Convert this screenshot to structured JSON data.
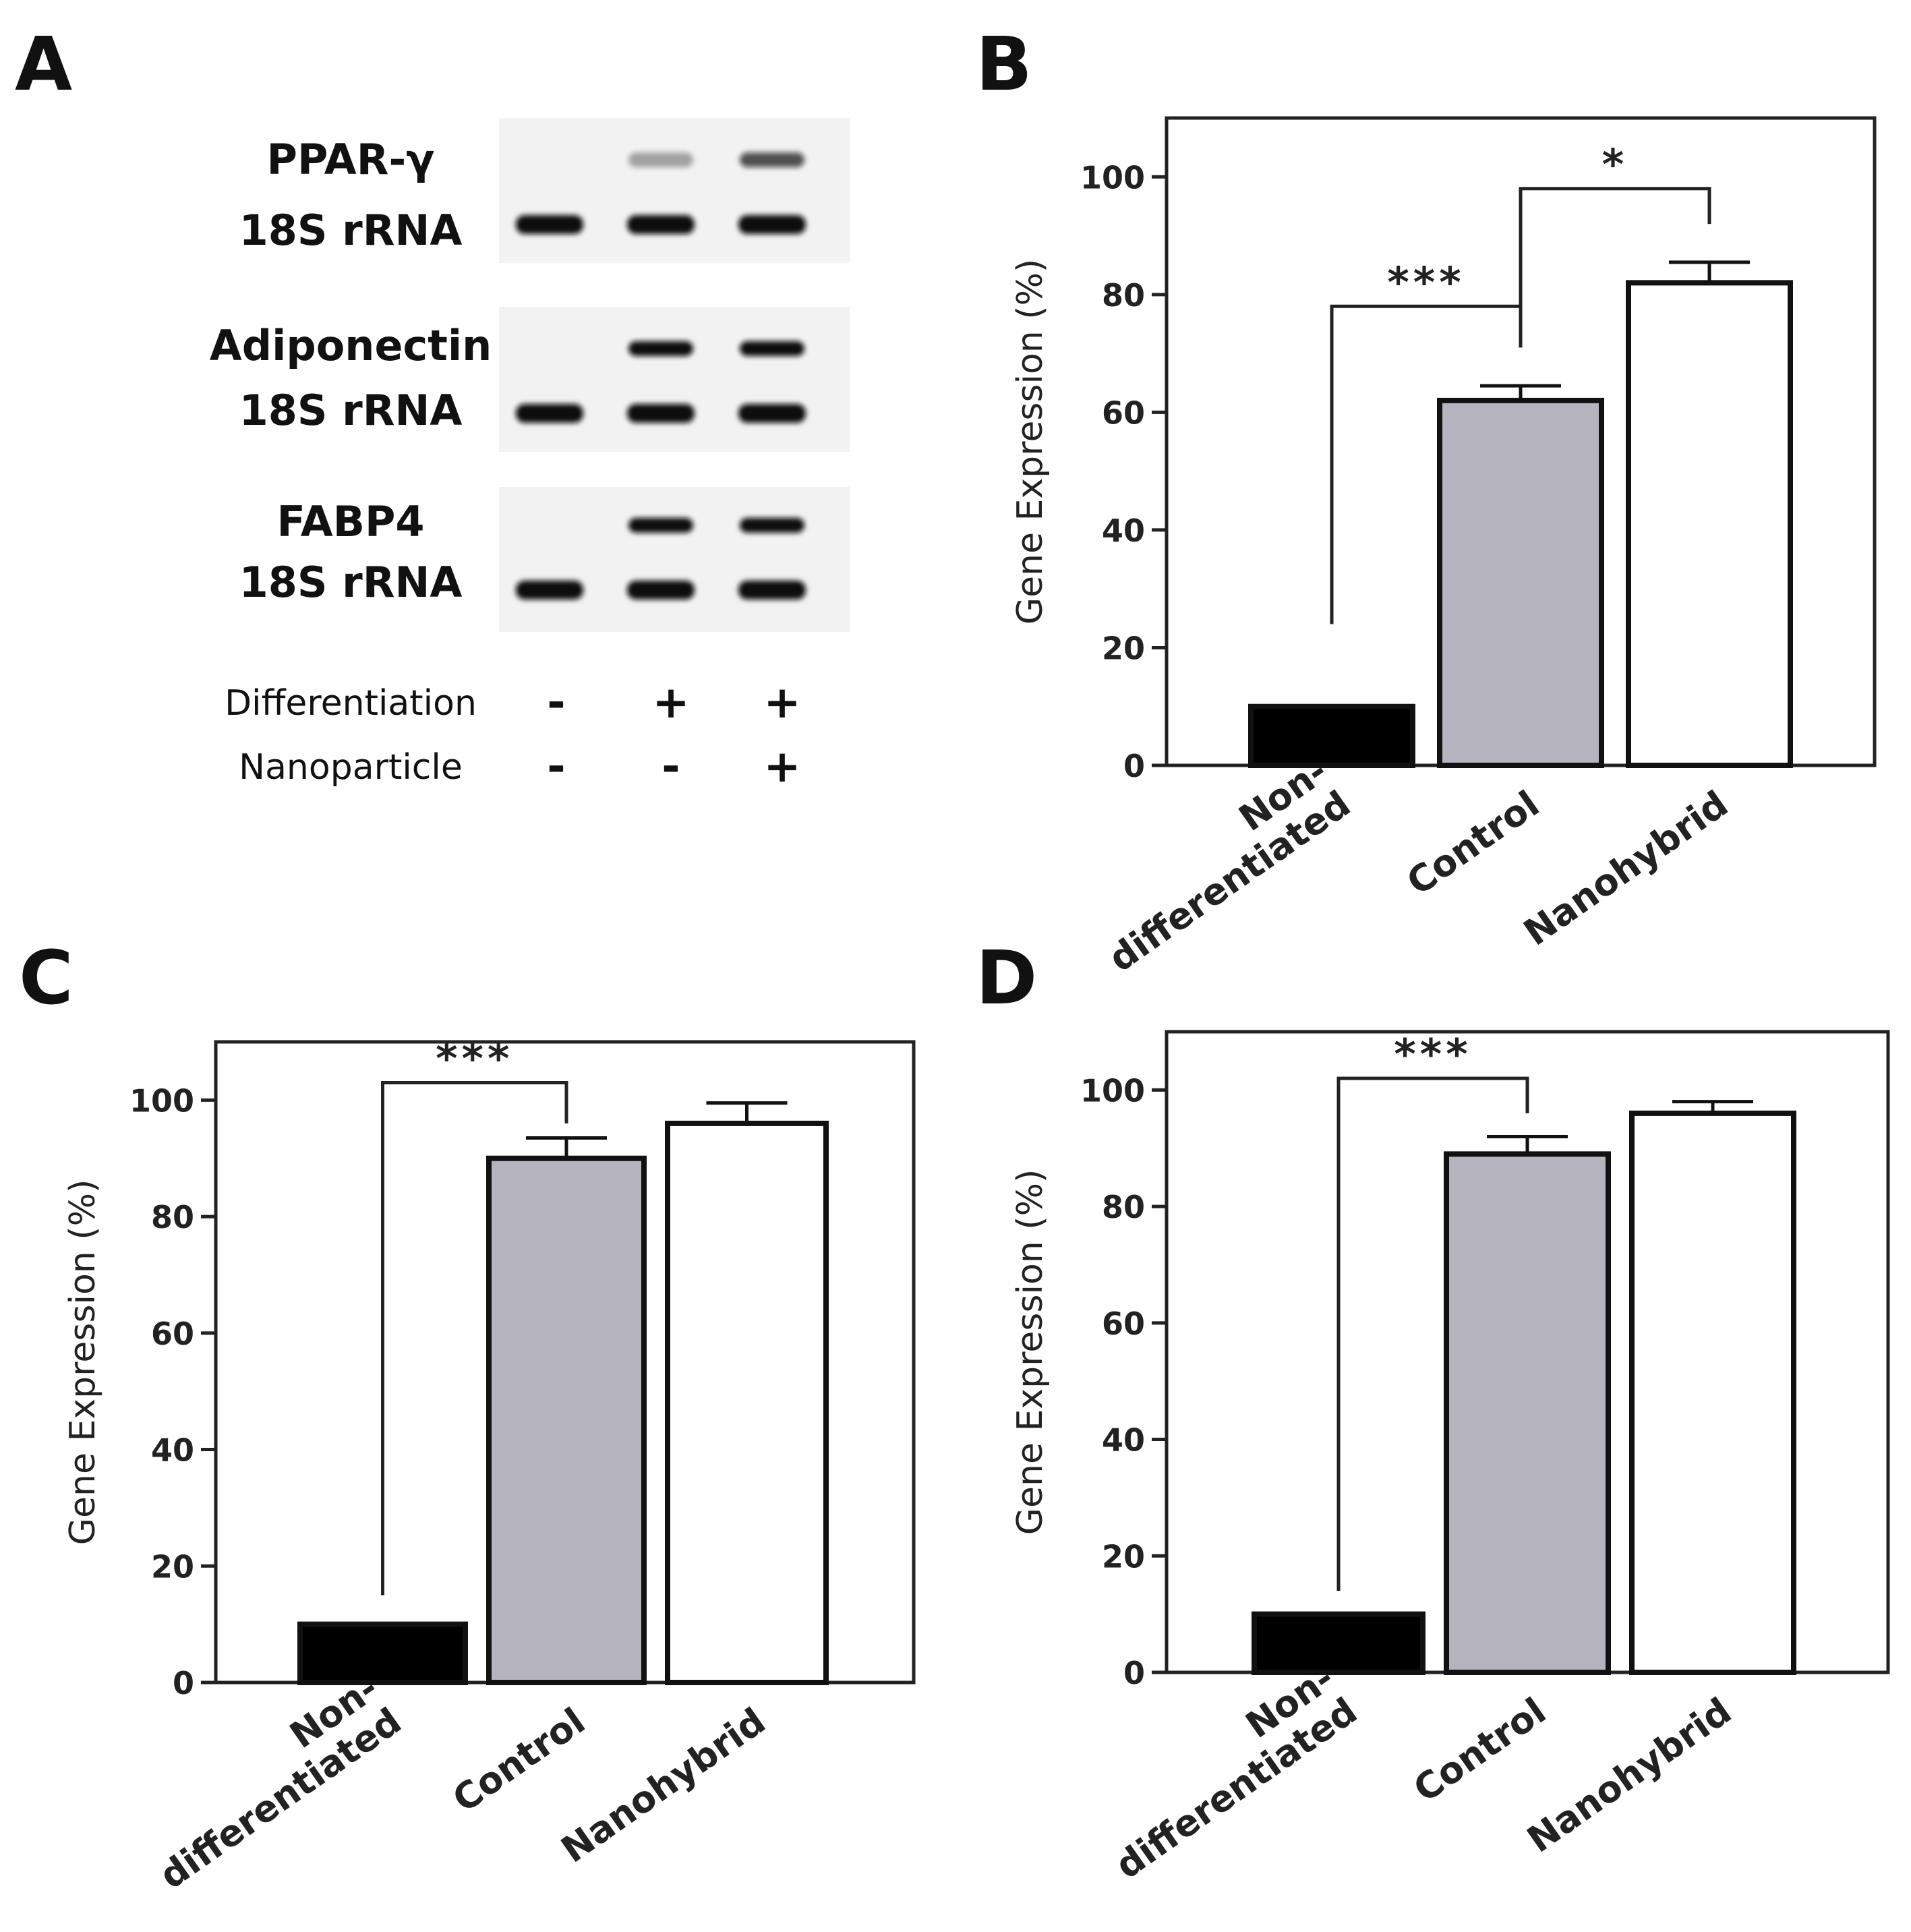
{
  "panels": {
    "a": "A",
    "b": "B",
    "c": "C",
    "d": "D"
  },
  "gel": {
    "groups": [
      {
        "target": "PPAR-γ",
        "reference": "18S rRNA",
        "target_bands": [
          0,
          0.35,
          0.7
        ],
        "reference_bands": [
          1,
          1,
          1
        ]
      },
      {
        "target": "Adiponectin",
        "reference": "18S rRNA",
        "target_bands": [
          0,
          1,
          1
        ],
        "reference_bands": [
          1,
          1,
          1
        ]
      },
      {
        "target": "FABP4",
        "reference": "18S rRNA",
        "target_bands": [
          0,
          1,
          1
        ],
        "reference_bands": [
          1,
          1,
          1
        ]
      }
    ],
    "conditions": [
      {
        "label": "Differentiation",
        "values": [
          "-",
          "+",
          "+"
        ]
      },
      {
        "label": "Nanoparticle",
        "values": [
          "-",
          "-",
          "+"
        ]
      }
    ]
  },
  "colors": {
    "non_differentiated": "#000000",
    "control": "#b4b3be",
    "nanohybrid": "#ffffff",
    "axis": "#222222"
  },
  "chart_data": [
    {
      "panel": "B",
      "type": "bar",
      "categories": [
        "Non-differentiated",
        "Control",
        "Nanohybrid"
      ],
      "category_lines": [
        [
          "Non-",
          "differentiated"
        ],
        [
          "Control"
        ],
        [
          "Nanohybrid"
        ]
      ],
      "values": [
        10,
        62,
        82
      ],
      "errors": [
        0,
        2.5,
        3.5
      ],
      "ylabel": "Gene Expression (%)",
      "ylim": [
        0,
        110
      ],
      "yticks": [
        0,
        20,
        40,
        60,
        80,
        100
      ],
      "significance": [
        {
          "from": 0,
          "to": 1,
          "label": "***",
          "left_end": 24,
          "right_end": 71,
          "bar_y": 78
        },
        {
          "from": 1,
          "to": 2,
          "label": "*",
          "left_end": 72,
          "right_end": 92,
          "bar_y": 98
        }
      ]
    },
    {
      "panel": "C",
      "type": "bar",
      "categories": [
        "Non-differentiated",
        "Control",
        "Nanohybrid"
      ],
      "category_lines": [
        [
          "Non-",
          "differentiated"
        ],
        [
          "Control"
        ],
        [
          "Nanohybrid"
        ]
      ],
      "values": [
        10,
        90,
        96
      ],
      "errors": [
        0,
        3.5,
        3.5
      ],
      "ylabel": "Gene Expression (%)",
      "ylim": [
        0,
        110
      ],
      "yticks": [
        0,
        20,
        40,
        60,
        80,
        100
      ],
      "significance": [
        {
          "from": 0,
          "to": 1,
          "label": "***",
          "left_end": 15,
          "right_end": 96,
          "bar_y": 103
        }
      ]
    },
    {
      "panel": "D",
      "type": "bar",
      "categories": [
        "Non-differentiated",
        "Control",
        "Nanohybrid"
      ],
      "category_lines": [
        [
          "Non-",
          "differentiated"
        ],
        [
          "Control"
        ],
        [
          "Nanohybrid"
        ]
      ],
      "values": [
        10,
        89,
        96
      ],
      "errors": [
        0,
        3,
        2
      ],
      "ylabel": "Gene Expression (%)",
      "ylim": [
        0,
        110
      ],
      "yticks": [
        0,
        20,
        40,
        60,
        80,
        100
      ],
      "significance": [
        {
          "from": 0,
          "to": 1,
          "label": "***",
          "left_end": 14,
          "right_end": 96,
          "bar_y": 102
        }
      ]
    }
  ]
}
